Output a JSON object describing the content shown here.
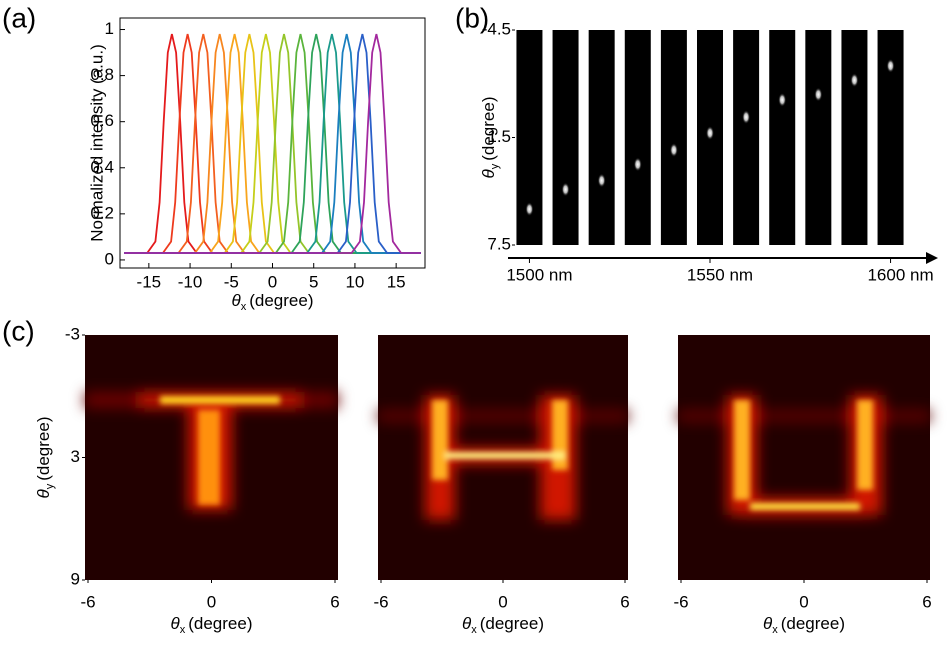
{
  "chart_data": [
    {
      "type": "line",
      "label": "(a)",
      "ylabel": "Normalized intensity (a.u.)",
      "xlabel": {
        "symbol": "θ",
        "sub": "x",
        "text": "(degree)"
      },
      "xlim": [
        -18.5,
        18.5
      ],
      "ylim": [
        -0.035,
        1.05
      ],
      "xticks": [
        -15,
        -10,
        -5,
        0,
        5,
        10,
        15
      ],
      "yticks": [
        0,
        0.2,
        0.4,
        0.6,
        0.8,
        1
      ],
      "series": [
        {
          "color": "#e41a1c",
          "x": [
            -18,
            -15.2,
            -14.2,
            -13.7,
            -13.2,
            -12.7,
            -12.2,
            -11.7,
            -11.2,
            -10.7,
            -10.2,
            -9.2,
            18
          ],
          "values": [
            0.03,
            0.03,
            0.08,
            0.25,
            0.6,
            0.9,
            0.98,
            0.9,
            0.6,
            0.25,
            0.08,
            0.03,
            0.03
          ]
        },
        {
          "color": "#ee3b1e",
          "x": [
            -18,
            -13.3,
            -12.3,
            -11.8,
            -11.3,
            -10.8,
            -10.3,
            -9.8,
            -9.3,
            -8.8,
            -8.3,
            -7.3,
            18
          ],
          "values": [
            0.03,
            0.03,
            0.08,
            0.25,
            0.6,
            0.9,
            0.98,
            0.9,
            0.6,
            0.25,
            0.08,
            0.03,
            0.03
          ]
        },
        {
          "color": "#f35f1f",
          "x": [
            -18,
            -11.4,
            -10.4,
            -9.9,
            -9.4,
            -8.9,
            -8.4,
            -7.9,
            -7.4,
            -6.9,
            -6.4,
            -5.4,
            18
          ],
          "values": [
            0.03,
            0.03,
            0.08,
            0.25,
            0.6,
            0.9,
            0.98,
            0.9,
            0.6,
            0.25,
            0.08,
            0.03,
            0.03
          ]
        },
        {
          "color": "#f7861f",
          "x": [
            -18,
            -9.4,
            -8.4,
            -7.9,
            -7.4,
            -6.9,
            -6.4,
            -5.9,
            -5.4,
            -4.9,
            -4.4,
            -3.4,
            18
          ],
          "values": [
            0.03,
            0.03,
            0.08,
            0.25,
            0.6,
            0.9,
            0.98,
            0.9,
            0.6,
            0.25,
            0.08,
            0.03,
            0.03
          ]
        },
        {
          "color": "#f8a51c",
          "x": [
            -18,
            -7.6,
            -6.6,
            -6.1,
            -5.6,
            -5.1,
            -4.6,
            -4.1,
            -3.6,
            -3.1,
            -2.6,
            -1.6,
            18
          ],
          "values": [
            0.03,
            0.03,
            0.08,
            0.25,
            0.6,
            0.9,
            0.98,
            0.9,
            0.6,
            0.25,
            0.08,
            0.03,
            0.03
          ]
        },
        {
          "color": "#e8c317",
          "x": [
            -18,
            -5.8,
            -4.8,
            -4.3,
            -3.8,
            -3.3,
            -2.8,
            -2.3,
            -1.8,
            -1.3,
            -0.8,
            0.2,
            18
          ],
          "values": [
            0.03,
            0.03,
            0.08,
            0.25,
            0.6,
            0.9,
            0.98,
            0.9,
            0.6,
            0.25,
            0.08,
            0.03,
            0.03
          ]
        },
        {
          "color": "#c5cf1a",
          "x": [
            -18,
            -3.8,
            -2.8,
            -2.3,
            -1.8,
            -1.3,
            -0.8,
            -0.3,
            0.2,
            0.7,
            1.2,
            2.2,
            18
          ],
          "values": [
            0.03,
            0.03,
            0.08,
            0.25,
            0.6,
            0.9,
            0.98,
            0.9,
            0.6,
            0.25,
            0.08,
            0.03,
            0.03
          ]
        },
        {
          "color": "#94c52a",
          "x": [
            -18,
            -1.6,
            -0.6,
            -0.1,
            0.4,
            0.9,
            1.4,
            1.9,
            2.4,
            2.9,
            3.4,
            4.4,
            18
          ],
          "values": [
            0.03,
            0.03,
            0.08,
            0.25,
            0.6,
            0.9,
            0.98,
            0.9,
            0.6,
            0.25,
            0.08,
            0.03,
            0.03
          ]
        },
        {
          "color": "#5ab43c",
          "x": [
            -18,
            0.4,
            1.4,
            1.9,
            2.4,
            2.9,
            3.4,
            3.9,
            4.4,
            4.9,
            5.4,
            6.4,
            18
          ],
          "values": [
            0.03,
            0.03,
            0.08,
            0.25,
            0.6,
            0.9,
            0.98,
            0.9,
            0.6,
            0.25,
            0.08,
            0.03,
            0.03
          ]
        },
        {
          "color": "#2ea35a",
          "x": [
            -18,
            2.3,
            3.3,
            3.8,
            4.3,
            4.8,
            5.3,
            5.8,
            6.3,
            6.8,
            7.3,
            8.3,
            18
          ],
          "values": [
            0.03,
            0.03,
            0.08,
            0.25,
            0.6,
            0.9,
            0.98,
            0.9,
            0.6,
            0.25,
            0.08,
            0.03,
            0.03
          ]
        },
        {
          "color": "#1a9a8c",
          "x": [
            -18,
            4.2,
            5.2,
            5.7,
            6.2,
            6.7,
            7.2,
            7.7,
            8.2,
            8.7,
            9.2,
            10.2,
            18
          ],
          "values": [
            0.03,
            0.03,
            0.08,
            0.25,
            0.6,
            0.9,
            0.98,
            0.9,
            0.6,
            0.25,
            0.08,
            0.03,
            0.03
          ]
        },
        {
          "color": "#1b7fbf",
          "x": [
            -18,
            6,
            7,
            7.5,
            8,
            8.5,
            9,
            9.5,
            10,
            10.5,
            11,
            12,
            18
          ],
          "values": [
            0.03,
            0.03,
            0.08,
            0.25,
            0.6,
            0.9,
            0.98,
            0.9,
            0.6,
            0.25,
            0.08,
            0.03,
            0.03
          ]
        },
        {
          "color": "#2a5fc8",
          "x": [
            -18,
            7.9,
            8.9,
            9.4,
            9.9,
            10.4,
            10.9,
            11.4,
            11.9,
            12.4,
            12.9,
            13.9,
            18
          ],
          "values": [
            0.03,
            0.03,
            0.08,
            0.25,
            0.6,
            0.9,
            0.98,
            0.9,
            0.6,
            0.25,
            0.08,
            0.03,
            0.03
          ]
        },
        {
          "color": "#a3289e",
          "x": [
            -18,
            9.6,
            10.6,
            11.1,
            11.6,
            12.1,
            12.6,
            13.1,
            13.6,
            14.1,
            14.6,
            15.6,
            18
          ],
          "values": [
            0.03,
            0.03,
            0.08,
            0.25,
            0.6,
            0.9,
            0.98,
            0.9,
            0.6,
            0.25,
            0.08,
            0.03,
            0.03
          ]
        }
      ]
    },
    {
      "type": "scatter",
      "label": "(b)",
      "ylabel": {
        "symbol": "θ",
        "sub": "y",
        "text": "(degree)"
      },
      "xlim": [
        1496,
        1604
      ],
      "ylim": [
        7.5,
        -4.5
      ],
      "xticks": [
        {
          "value": 1500,
          "label": "1500 nm"
        },
        {
          "value": 1550,
          "label": "1550 nm"
        },
        {
          "value": 1600,
          "label": "1600 nm"
        }
      ],
      "yticks": [
        -4.5,
        1.5,
        7.5
      ],
      "x": [
        1500,
        1510,
        1520,
        1530,
        1540,
        1550,
        1560,
        1570,
        1580,
        1590,
        1600
      ],
      "values": [
        5.5,
        4.4,
        3.9,
        3.0,
        2.2,
        1.25,
        0.36,
        -0.6,
        -0.9,
        -1.7,
        -2.5
      ]
    },
    {
      "type": "heatmap",
      "label": "(c)",
      "ylabel": {
        "symbol": "θ",
        "sub": "y",
        "text": "(degree)"
      },
      "xlabel": {
        "symbol": "θ",
        "sub": "x",
        "text": "(degree)"
      },
      "xlim": [
        -6,
        6
      ],
      "ylim": [
        9,
        -3
      ],
      "xticks": [
        -6,
        0,
        6
      ],
      "yticks": [
        -3,
        3,
        9
      ]
    }
  ]
}
